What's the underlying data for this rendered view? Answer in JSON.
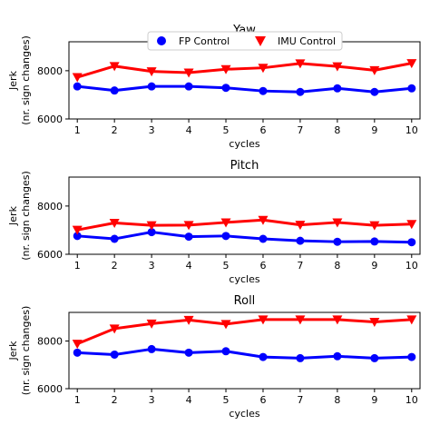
{
  "chart_data": [
    {
      "type": "line",
      "title": "Yaw",
      "xlabel": "cycles",
      "ylabel": [
        "Jerk",
        "(nr. sign changes)"
      ],
      "x": [
        1,
        2,
        3,
        4,
        5,
        6,
        7,
        8,
        9,
        10
      ],
      "ylim": [
        6000,
        9200
      ],
      "yticks": [
        6000,
        8000
      ],
      "legend": "top-center",
      "series": [
        {
          "name": "FP Control",
          "color": "#0000ff",
          "marker": "circle",
          "values": [
            7350,
            7180,
            7350,
            7350,
            7290,
            7160,
            7120,
            7270,
            7120,
            7270
          ]
        },
        {
          "name": "IMU Control",
          "color": "#ff0000",
          "marker": "triangle-down",
          "values": [
            7730,
            8190,
            7970,
            7920,
            8060,
            8120,
            8300,
            8180,
            8020,
            8310
          ]
        }
      ]
    },
    {
      "type": "line",
      "title": "Pitch",
      "xlabel": "cycles",
      "ylabel": [
        "Jerk",
        "(nr. sign changes)"
      ],
      "x": [
        1,
        2,
        3,
        4,
        5,
        6,
        7,
        8,
        9,
        10
      ],
      "ylim": [
        6000,
        9200
      ],
      "yticks": [
        6000,
        8000
      ],
      "series": [
        {
          "name": "FP Control",
          "color": "#0000ff",
          "marker": "circle",
          "values": [
            6760,
            6640,
            6920,
            6730,
            6760,
            6640,
            6560,
            6520,
            6530,
            6500
          ]
        },
        {
          "name": "IMU Control",
          "color": "#ff0000",
          "marker": "triangle-down",
          "values": [
            7010,
            7300,
            7200,
            7210,
            7320,
            7420,
            7220,
            7320,
            7200,
            7250
          ]
        }
      ]
    },
    {
      "type": "line",
      "title": "Roll",
      "xlabel": "cycles",
      "ylabel": [
        "Jerk",
        "(nr. sign changes)"
      ],
      "x": [
        1,
        2,
        3,
        4,
        5,
        6,
        7,
        8,
        9,
        10
      ],
      "ylim": [
        6000,
        9200
      ],
      "yticks": [
        6000,
        8000
      ],
      "series": [
        {
          "name": "FP Control",
          "color": "#0000ff",
          "marker": "circle",
          "values": [
            7510,
            7430,
            7660,
            7510,
            7570,
            7330,
            7280,
            7360,
            7280,
            7330
          ]
        },
        {
          "name": "IMU Control",
          "color": "#ff0000",
          "marker": "triangle-down",
          "values": [
            7880,
            8520,
            8730,
            8880,
            8710,
            8900,
            8900,
            8900,
            8800,
            8900
          ]
        }
      ]
    }
  ]
}
